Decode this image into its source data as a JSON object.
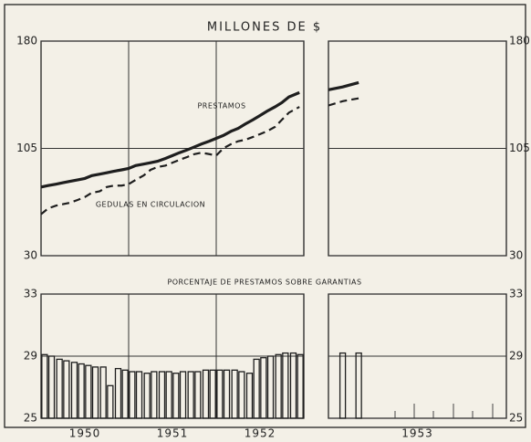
{
  "chart_data": [
    {
      "type": "line",
      "title": "MILLONES DE $",
      "x": [
        1950.0,
        1950.08,
        1950.17,
        1950.25,
        1950.33,
        1950.42,
        1950.5,
        1950.58,
        1950.67,
        1950.75,
        1950.83,
        1950.92,
        1951.0,
        1951.08,
        1951.17,
        1951.25,
        1951.33,
        1951.42,
        1951.5,
        1951.58,
        1951.67,
        1951.75,
        1951.83,
        1951.92,
        1952.0,
        1952.08,
        1952.17,
        1952.25,
        1952.33,
        1952.42,
        1952.5,
        1952.58,
        1952.67,
        1952.75,
        1952.83,
        1952.95,
        1953.0,
        1953.08,
        1953.17
      ],
      "series": [
        {
          "name": "PRESTAMOS",
          "color": "#1e1e1e",
          "dash": false,
          "values": [
            78,
            79,
            80,
            81,
            82,
            83,
            84,
            86,
            87,
            88,
            89,
            90,
            91,
            93,
            94,
            95,
            96,
            98,
            100,
            102,
            104,
            106,
            108,
            110,
            112,
            114,
            117,
            119,
            122,
            125,
            128,
            131,
            134,
            137,
            141,
            144,
            146,
            148,
            151
          ]
        },
        {
          "name": "GEDULAS EN CIRCULACION",
          "color": "#1e1e1e",
          "dash": true,
          "values": [
            59,
            63,
            65,
            66,
            67,
            69,
            71,
            74,
            75,
            78,
            79,
            79,
            80,
            83,
            86,
            90,
            92,
            93,
            95,
            97,
            99,
            101,
            102,
            101,
            100,
            105,
            108,
            110,
            111,
            113,
            115,
            117,
            120,
            125,
            130,
            134,
            135,
            138,
            140
          ]
        }
      ],
      "xlim": [
        1950,
        1954
      ],
      "x_break": 1953,
      "ylim": [
        30,
        180
      ],
      "yticks": [
        30,
        105,
        180
      ],
      "grid": true
    },
    {
      "type": "bar",
      "title": "PORCENTAJE DE PRESTAMOS SOBRE GARANTIAS",
      "x": [
        1950.04,
        1950.12,
        1950.21,
        1950.29,
        1950.38,
        1950.46,
        1950.54,
        1950.62,
        1950.71,
        1950.79,
        1950.88,
        1950.96,
        1951.04,
        1951.12,
        1951.21,
        1951.29,
        1951.38,
        1951.46,
        1951.54,
        1951.62,
        1951.71,
        1951.79,
        1951.88,
        1951.96,
        1952.04,
        1952.12,
        1952.21,
        1952.29,
        1952.38,
        1952.46,
        1952.54,
        1952.62,
        1952.71,
        1952.79,
        1952.88,
        1952.96,
        1953.08,
        1953.17
      ],
      "values": [
        29.1,
        29.0,
        28.8,
        28.7,
        28.6,
        28.5,
        28.4,
        28.3,
        28.3,
        27.1,
        28.2,
        28.1,
        28.0,
        28.0,
        27.9,
        28.0,
        28.0,
        28.0,
        27.9,
        28.0,
        28.0,
        28.0,
        28.1,
        28.1,
        28.1,
        28.1,
        28.1,
        28.0,
        27.9,
        28.8,
        28.9,
        29.0,
        29.1,
        29.2,
        29.2,
        29.1,
        29.2,
        29.2
      ],
      "color": "#1e1e1e",
      "xlim": [
        1950,
        1954
      ],
      "x_break": 1953,
      "ylim": [
        25,
        33
      ],
      "yticks": [
        25,
        29,
        33
      ],
      "xticks": [
        {
          "value": 1950,
          "label": "1950"
        },
        {
          "value": 1951,
          "label": "1951"
        },
        {
          "value": 1952,
          "label": "1952"
        },
        {
          "value": 1953,
          "label": "1953"
        }
      ],
      "grid": true
    }
  ]
}
